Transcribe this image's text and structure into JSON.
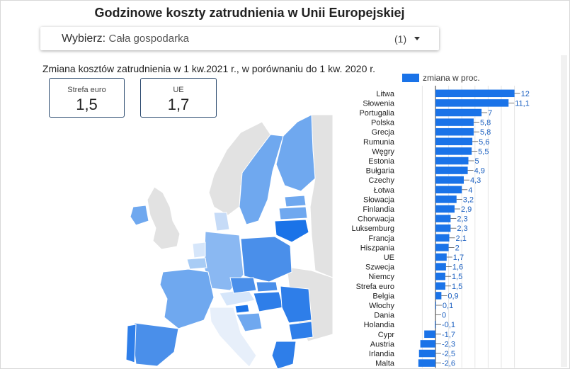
{
  "title": "Godzinowe koszty zatrudnienia w Unii Europejskiej",
  "selector": {
    "label": "Wybierz",
    "value": "Cała gospodarka",
    "count": "(1)"
  },
  "subtitle": "Zmiana kosztów zatrudnienia w 1 kw.2021 r., w porównaniu do 1 kw. 2020 r.",
  "kpis": [
    {
      "label": "Strefa euro",
      "value": "1,5"
    },
    {
      "label": "UE",
      "value": "1,7"
    }
  ],
  "colors": {
    "bar": "#1a73e8",
    "map_light": "#c6dbf7",
    "map_mid": "#6fa8ef",
    "map_dark": "#1a73e8",
    "map_grey": "#e2e2e2"
  },
  "chart_data": {
    "type": "bar",
    "orientation": "horizontal",
    "legend": {
      "label": "zmiana w proc.",
      "placement": "top"
    },
    "categories": [
      "Litwa",
      "Słowenia",
      "Portugalia",
      "Polska",
      "Grecja",
      "Rumunia",
      "Węgry",
      "Estonia",
      "Bułgaria",
      "Czechy",
      "Łotwa",
      "Słowacja",
      "Finlandia",
      "Chorwacja",
      "Luksemburg",
      "Francja",
      "Hiszpania",
      "UE",
      "Szwecja",
      "Niemcy",
      "Strefa euro",
      "Belgia",
      "Włochy",
      "Dania",
      "Holandia",
      "Cypr",
      "Austria",
      "Irlandia",
      "Malta"
    ],
    "values": [
      12,
      11.1,
      7,
      5.8,
      5.8,
      5.6,
      5.5,
      5,
      4.9,
      4.3,
      4,
      3.2,
      2.9,
      2.3,
      2.3,
      2.1,
      2,
      1.7,
      1.6,
      1.5,
      1.5,
      0.9,
      0.1,
      0,
      -0.1,
      -1.7,
      -2.3,
      -2.5,
      -2.6
    ],
    "labels": [
      "12",
      "11,1",
      "7",
      "5,8",
      "5,8",
      "5,6",
      "5,5",
      "5",
      "4,9",
      "4,3",
      "4",
      "3,2",
      "2,9",
      "2,3",
      "2,3",
      "2,1",
      "2",
      "1,7",
      "1,6",
      "1,5",
      "1,5",
      "0,9",
      "0,1",
      "0",
      "-0,1",
      "-1,7",
      "-2,3",
      "-2,5",
      "-2,6"
    ],
    "xlim": [
      -3,
      12
    ],
    "grid": true
  }
}
